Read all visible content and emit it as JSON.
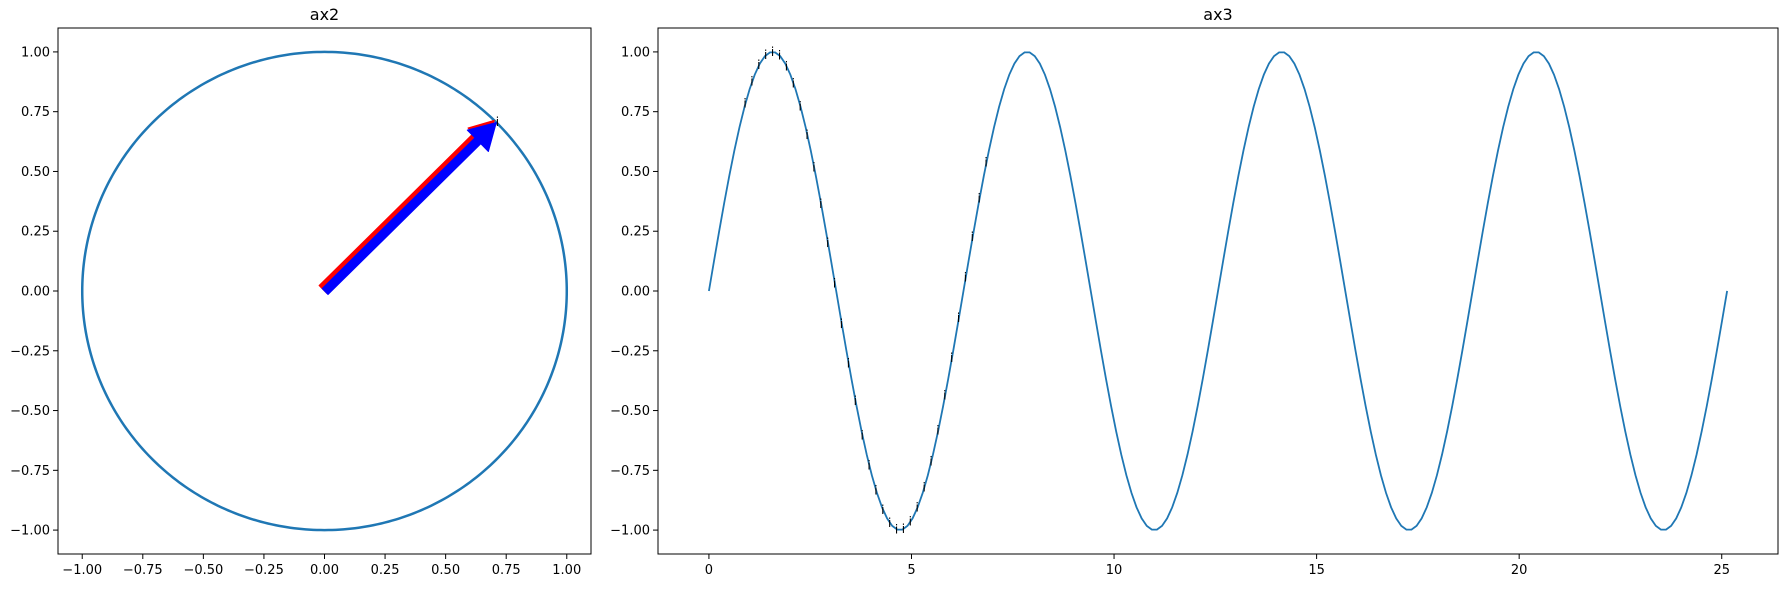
{
  "chart_data": [
    {
      "type": "line",
      "title": "ax2",
      "xlim": [
        -1.1,
        1.1
      ],
      "ylim": [
        -1.1,
        1.1
      ],
      "xticks": [
        -1.0,
        -0.75,
        -0.5,
        -0.25,
        0.0,
        0.25,
        0.5,
        0.75,
        1.0
      ],
      "yticks": [
        -1.0,
        -0.75,
        -0.5,
        -0.25,
        0.0,
        0.25,
        0.5,
        0.75,
        1.0
      ],
      "xtick_labels": [
        "−1.00",
        "−0.75",
        "−0.50",
        "−0.25",
        "0.00",
        "0.25",
        "0.50",
        "0.75",
        "1.00"
      ],
      "ytick_labels": [
        "−1.00",
        "−0.75",
        "−0.50",
        "−0.25",
        "0.00",
        "0.25",
        "0.50",
        "0.75",
        "1.00"
      ],
      "series": [
        {
          "kind": "circle",
          "center": [
            0,
            0
          ],
          "radius": 1.0,
          "color": "#1f77b4"
        }
      ],
      "arrows": [
        {
          "from": [
            0,
            0
          ],
          "to": [
            0.707,
            0.707
          ],
          "color": "#ff0000"
        },
        {
          "from": [
            0,
            0
          ],
          "to": [
            0.707,
            0.707
          ],
          "color": "#0000ff"
        }
      ],
      "annotations": [
        {
          "x": 0.707,
          "y": 0.707,
          "text": "i"
        }
      ],
      "grid": false
    },
    {
      "type": "line",
      "title": "ax3",
      "xlim": [
        -1.257,
        26.389
      ],
      "ylim": [
        -1.1,
        1.1
      ],
      "xticks": [
        0,
        5,
        10,
        15,
        20,
        25
      ],
      "yticks": [
        -1.0,
        -0.75,
        -0.5,
        -0.25,
        0.0,
        0.25,
        0.5,
        0.75,
        1.0
      ],
      "xtick_labels": [
        "0",
        "5",
        "10",
        "15",
        "20",
        "25"
      ],
      "ytick_labels": [
        "−1.00",
        "−0.75",
        "−0.50",
        "−0.25",
        "0.00",
        "0.25",
        "0.50",
        "0.75",
        "1.00"
      ],
      "series": [
        {
          "kind": "function",
          "function": "sin(x)",
          "x_range": [
            0,
            25.133
          ],
          "color": "#1f77b4"
        }
      ],
      "annotation_points": {
        "function": "sin(x)",
        "x_start": 0.9,
        "x_end": 7.0,
        "step": 0.17,
        "text": "i"
      },
      "grid": false
    }
  ],
  "colors": {
    "line": "#1f77b4",
    "arrow_outer": "#ff0000",
    "arrow_inner": "#0000ff"
  }
}
